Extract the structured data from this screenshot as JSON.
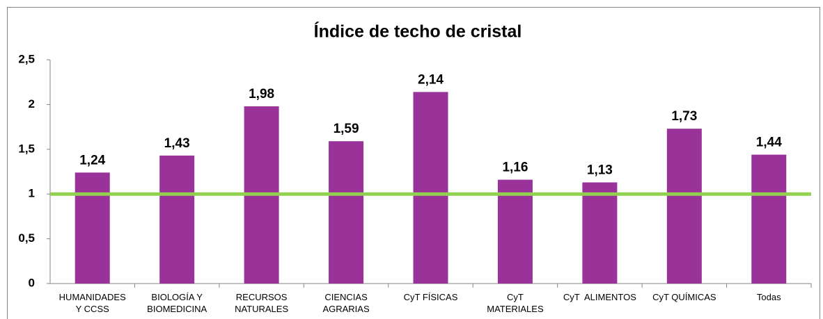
{
  "chart_data": {
    "type": "bar",
    "title": "Índice de techo de cristal",
    "categories": [
      "HUMANIDADES\nY CCSS",
      "BIOLOGÍA Y\nBIOMEDICINA",
      "RECURSOS\nNATURALES",
      "CIENCIAS\nAGRARIAS",
      "CyT FÍSICAS",
      "CyT\nMATERIALES",
      "CyT  ALIMENTOS",
      "CyT QUÍMICAS",
      "Todas"
    ],
    "values": [
      1.24,
      1.43,
      1.98,
      1.59,
      2.14,
      1.16,
      1.13,
      1.73,
      1.44
    ],
    "value_labels": [
      "1,24",
      "1,43",
      "1,98",
      "1,59",
      "2,14",
      "1,16",
      "1,13",
      "1,73",
      "1,44"
    ],
    "color": "#993399",
    "ylim": [
      0,
      2.5
    ],
    "yticks": [
      0,
      {
        "value": 0.5,
        "label": "0,5"
      },
      1,
      {
        "value": 1.5,
        "label": "1,5"
      },
      2,
      {
        "value": 2.5,
        "label": "2,5"
      }
    ],
    "grid": false,
    "reference_line": {
      "value": 1,
      "color": "#92d050"
    }
  }
}
